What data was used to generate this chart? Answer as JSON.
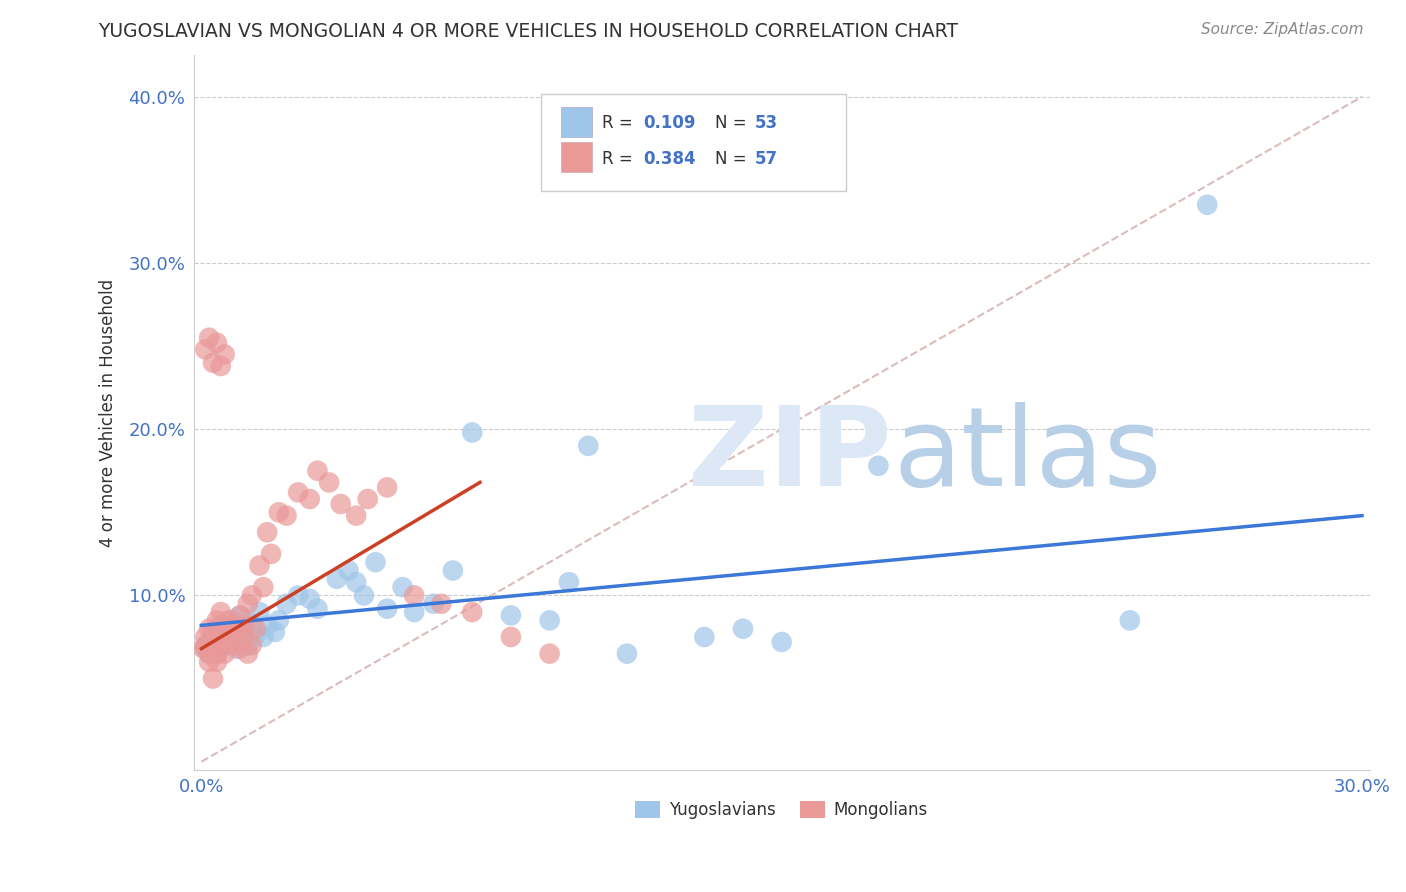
{
  "title": "YUGOSLAVIAN VS MONGOLIAN 4 OR MORE VEHICLES IN HOUSEHOLD CORRELATION CHART",
  "source_text": "Source: ZipAtlas.com",
  "ylabel": "4 or more Vehicles in Household",
  "xlim": [
    -0.002,
    0.302
  ],
  "ylim": [
    -0.005,
    0.425
  ],
  "xticks": [
    0.0,
    0.05,
    0.1,
    0.15,
    0.2,
    0.25,
    0.3
  ],
  "xtick_labels": [
    "0.0%",
    "",
    "",
    "",
    "",
    "",
    "30.0%"
  ],
  "yticks": [
    0.0,
    0.1,
    0.2,
    0.3,
    0.4
  ],
  "ytick_labels": [
    "",
    "10.0%",
    "20.0%",
    "30.0%",
    "40.0%"
  ],
  "blue_color": "#9fc5e8",
  "pink_color": "#ea9999",
  "blue_line_color": "#3c78d8",
  "pink_line_color": "#cc4125",
  "grid_color": "#cccccc",
  "diag_color": "#ddbbbb",
  "legend_R1": "0.109",
  "legend_N1": "53",
  "legend_R2": "0.384",
  "legend_N2": "57",
  "label_color": "#4472c4",
  "text_color": "#333333",
  "source_color": "#888888",
  "watermark_color": "#dce8f5",
  "background_color": "#ffffff",
  "blue_x": [
    0.001,
    0.002,
    0.002,
    0.003,
    0.003,
    0.004,
    0.004,
    0.005,
    0.005,
    0.006,
    0.006,
    0.007,
    0.007,
    0.008,
    0.008,
    0.009,
    0.01,
    0.01,
    0.011,
    0.012,
    0.013,
    0.014,
    0.015,
    0.016,
    0.017,
    0.019,
    0.02,
    0.022,
    0.025,
    0.028,
    0.03,
    0.035,
    0.038,
    0.04,
    0.042,
    0.045,
    0.048,
    0.052,
    0.055,
    0.06,
    0.065,
    0.07,
    0.08,
    0.09,
    0.095,
    0.1,
    0.11,
    0.13,
    0.14,
    0.15,
    0.175,
    0.24,
    0.26
  ],
  "blue_y": [
    0.068,
    0.065,
    0.072,
    0.07,
    0.078,
    0.065,
    0.075,
    0.068,
    0.082,
    0.07,
    0.076,
    0.073,
    0.08,
    0.072,
    0.085,
    0.068,
    0.073,
    0.088,
    0.078,
    0.07,
    0.083,
    0.076,
    0.09,
    0.075,
    0.082,
    0.078,
    0.085,
    0.095,
    0.1,
    0.098,
    0.092,
    0.11,
    0.115,
    0.108,
    0.1,
    0.12,
    0.092,
    0.105,
    0.09,
    0.095,
    0.115,
    0.198,
    0.088,
    0.085,
    0.108,
    0.19,
    0.065,
    0.075,
    0.08,
    0.072,
    0.178,
    0.085,
    0.335
  ],
  "pink_x": [
    0.0005,
    0.001,
    0.001,
    0.002,
    0.002,
    0.002,
    0.003,
    0.003,
    0.003,
    0.004,
    0.004,
    0.004,
    0.005,
    0.005,
    0.005,
    0.006,
    0.006,
    0.007,
    0.007,
    0.008,
    0.008,
    0.009,
    0.009,
    0.01,
    0.01,
    0.011,
    0.011,
    0.012,
    0.012,
    0.013,
    0.013,
    0.014,
    0.015,
    0.016,
    0.017,
    0.018,
    0.02,
    0.022,
    0.025,
    0.028,
    0.03,
    0.033,
    0.036,
    0.04,
    0.043,
    0.048,
    0.055,
    0.062,
    0.07,
    0.08,
    0.09,
    0.001,
    0.002,
    0.003,
    0.004,
    0.005,
    0.006
  ],
  "pink_y": [
    0.068,
    0.07,
    0.075,
    0.065,
    0.08,
    0.06,
    0.072,
    0.078,
    0.05,
    0.065,
    0.085,
    0.06,
    0.075,
    0.07,
    0.09,
    0.065,
    0.08,
    0.075,
    0.085,
    0.07,
    0.082,
    0.078,
    0.072,
    0.068,
    0.088,
    0.075,
    0.082,
    0.065,
    0.095,
    0.07,
    0.1,
    0.08,
    0.118,
    0.105,
    0.138,
    0.125,
    0.15,
    0.148,
    0.162,
    0.158,
    0.175,
    0.168,
    0.155,
    0.148,
    0.158,
    0.165,
    0.1,
    0.095,
    0.09,
    0.075,
    0.065,
    0.248,
    0.255,
    0.24,
    0.252,
    0.238,
    0.245
  ],
  "blue_line_x": [
    0.0,
    0.3
  ],
  "blue_line_y": [
    0.082,
    0.148
  ],
  "pink_line_x": [
    0.0,
    0.072
  ],
  "pink_line_y": [
    0.068,
    0.168
  ]
}
